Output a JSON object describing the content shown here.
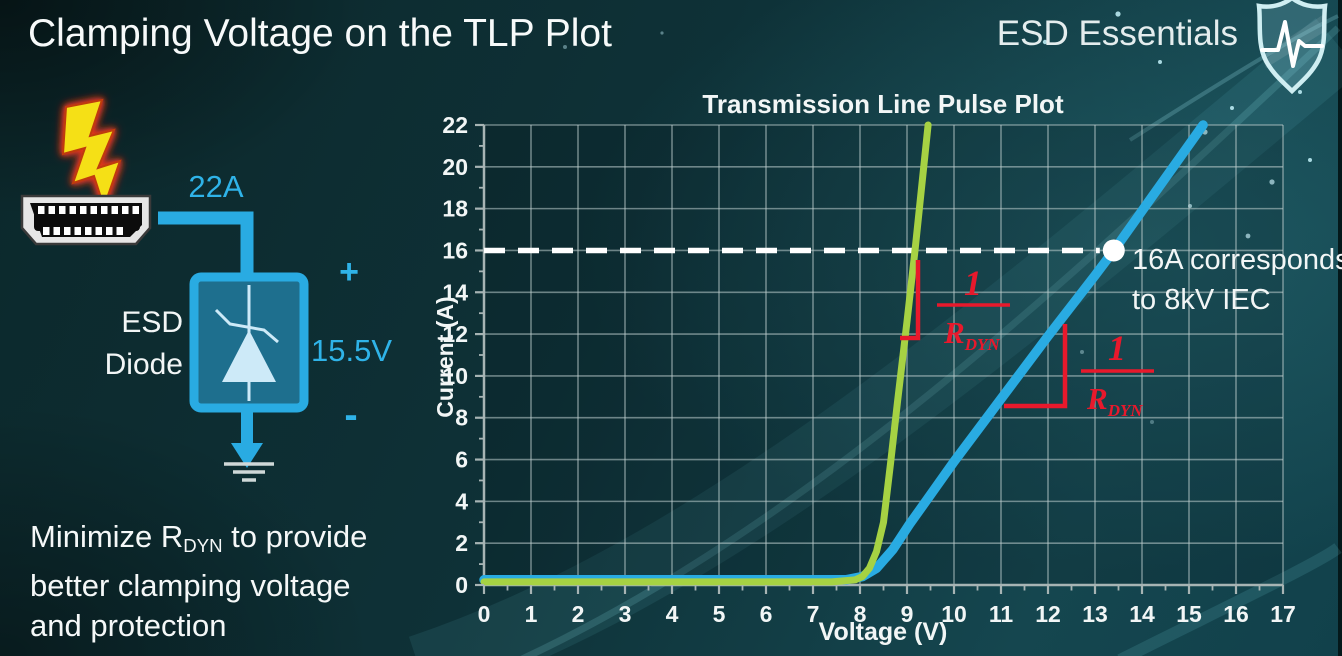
{
  "slide": {
    "title": "Clamping Voltage on the TLP Plot",
    "brand": "ESD Essentials"
  },
  "diagram": {
    "surge_current": "22A",
    "device_line1": "ESD",
    "device_line2": "Diode",
    "polarity_plus": "+",
    "polarity_minus": "-",
    "clamping_voltage": "15.5V"
  },
  "note": {
    "line1_pre": "Minimize R",
    "line1_sub": "DYN",
    "line1_post": " to provide",
    "line2": "better clamping voltage",
    "line3": "and protection"
  },
  "colors": {
    "accent_cyan": "#2fb3e8",
    "curve_green": "#a6d243",
    "curve_blue": "#29abe2",
    "annotation_red": "#e8192c",
    "reference_white": "#ffffff"
  },
  "chart_data": {
    "type": "line",
    "title": "Transmission Line Pulse Plot",
    "xlabel": "Voltage (V)",
    "ylabel": "Current (A)",
    "xlim": [
      0,
      17
    ],
    "ylim": [
      0,
      22
    ],
    "x_ticks": [
      0,
      1,
      2,
      3,
      4,
      5,
      6,
      7,
      8,
      9,
      10,
      11,
      12,
      13,
      14,
      15,
      16,
      17
    ],
    "y_ticks": [
      0,
      2,
      4,
      6,
      8,
      10,
      12,
      14,
      16,
      18,
      20,
      22
    ],
    "grid": true,
    "legend": false,
    "series": [
      {
        "name": "blue-curve",
        "color": "#29abe2",
        "width": 9.5,
        "points": [
          [
            0,
            0.25
          ],
          [
            7.7,
            0.25
          ],
          [
            8.05,
            0.4
          ],
          [
            8.35,
            0.8
          ],
          [
            8.7,
            1.7
          ],
          [
            9.05,
            2.9
          ],
          [
            9.4,
            4
          ],
          [
            10,
            5.9
          ],
          [
            11,
            8.9
          ],
          [
            12,
            11.9
          ],
          [
            13,
            14.8
          ],
          [
            13.4,
            16
          ],
          [
            15.3,
            22
          ]
        ]
      },
      {
        "name": "green-curve",
        "color": "#a6d243",
        "width": 7,
        "points": [
          [
            0,
            0.15
          ],
          [
            7.4,
            0.15
          ],
          [
            7.9,
            0.25
          ],
          [
            8.05,
            0.4
          ],
          [
            8.2,
            0.8
          ],
          [
            8.35,
            1.6
          ],
          [
            8.5,
            3
          ],
          [
            8.65,
            5.8
          ],
          [
            8.8,
            8.8
          ],
          [
            9,
            12.6
          ],
          [
            9.17,
            16
          ],
          [
            9.45,
            22
          ]
        ]
      }
    ],
    "reference_line": {
      "y": 16,
      "style": "dashed",
      "color": "#ffffff"
    },
    "marker": {
      "x": 13.4,
      "y": 16,
      "label_lines": [
        "16A corresponds",
        "to 8kV IEC"
      ]
    },
    "slope_annotations": [
      {
        "at_series": "green-curve",
        "numerator": "1",
        "denominator": "R",
        "denominator_sub": "DYN"
      },
      {
        "at_series": "blue-curve",
        "numerator": "1",
        "denominator": "R",
        "denominator_sub": "DYN"
      }
    ]
  }
}
